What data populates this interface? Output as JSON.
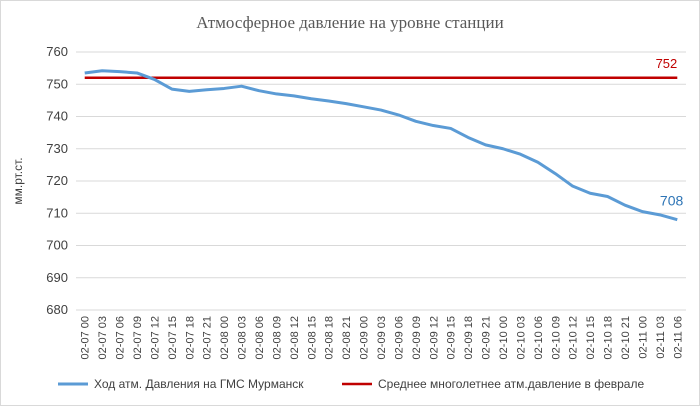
{
  "chart_data": {
    "type": "line",
    "title": "Атмосферное давление на уровне станции",
    "y_label": "мм.рт.ст.",
    "categories": [
      "02-07 00",
      "02-07 03",
      "02-07 06",
      "02-07 09",
      "02-07 12",
      "02-07 15",
      "02-07 18",
      "02-07 21",
      "02-08 00",
      "02-08 03",
      "02-08 06",
      "02-08 09",
      "02-08 12",
      "02-08 15",
      "02-08 18",
      "02-08 21",
      "02-09 00",
      "02-09 03",
      "02-09 06",
      "02-09 09",
      "02-09 12",
      "02-09 15",
      "02-09 18",
      "02-09 21",
      "02-10 00",
      "02-10 03",
      "02-10 06",
      "02-10 09",
      "02-10 12",
      "02-10 15",
      "02-10 18",
      "02-10 21",
      "02-11 00",
      "02-11 03",
      "02-11 06"
    ],
    "series": [
      {
        "name": "Ход атм. Давления на ГМС Мурманск",
        "color": "#5b9bd5",
        "values": [
          753.5,
          754.2,
          753.9,
          753.5,
          751.5,
          748.5,
          747.8,
          748.3,
          748.7,
          749.4,
          748.0,
          747.0,
          746.4,
          745.5,
          744.8,
          744.0,
          743.0,
          742.0,
          740.5,
          738.5,
          737.2,
          736.3,
          733.5,
          731.2,
          730.0,
          728.3,
          725.8,
          722.3,
          718.4,
          716.2,
          715.2,
          712.5,
          710.5,
          709.5,
          708
        ]
      }
    ],
    "reference_line": {
      "name": "Среднее многолетнее атм.давление в феврале",
      "color": "#c00000",
      "value": 752
    },
    "ylim": [
      680,
      760
    ],
    "yticks": [
      680,
      690,
      700,
      710,
      720,
      730,
      740,
      750,
      760
    ],
    "grid": true,
    "legend": "bottom"
  }
}
